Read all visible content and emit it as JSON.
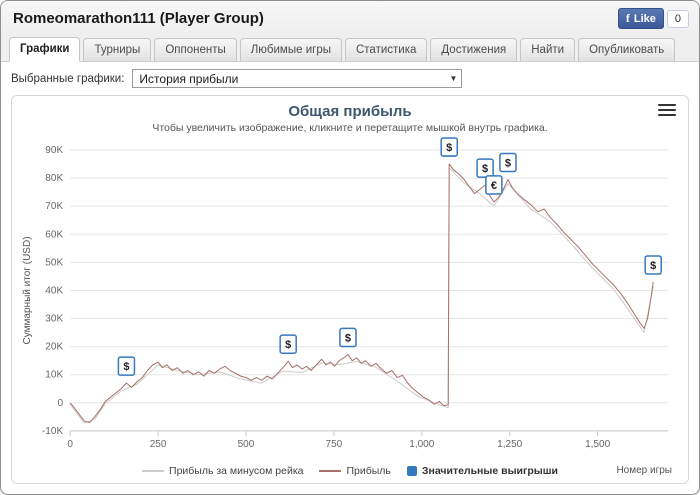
{
  "header": {
    "title": "Romeomarathon111 (Player Group)",
    "fb_like_label": "Like",
    "fb_like_count": "0"
  },
  "tabs": [
    {
      "label": "Графики",
      "active": true
    },
    {
      "label": "Турниры",
      "active": false
    },
    {
      "label": "Оппоненты",
      "active": false
    },
    {
      "label": "Любимые игры",
      "active": false
    },
    {
      "label": "Статистика",
      "active": false
    },
    {
      "label": "Достижения",
      "active": false
    },
    {
      "label": "Найти",
      "active": false
    },
    {
      "label": "Опубликовать",
      "active": false
    }
  ],
  "toolbar": {
    "label": "Выбранные графики:",
    "selected": "История прибыли"
  },
  "chart_data": {
    "type": "line",
    "title": "Общая прибыль",
    "subtitle": "Чтобы увеличить изображение, кликните и перетащите мышкой внутрь графика.",
    "xlabel": "Номер игры",
    "ylabel": "Суммарный итог (USD)",
    "xlim": [
      0,
      1700
    ],
    "ylim": [
      -10000,
      90000
    ],
    "grid": true,
    "legend_position": "bottom",
    "y_ticks": [
      {
        "v": -10000,
        "label": "-10K"
      },
      {
        "v": 0,
        "label": "0"
      },
      {
        "v": 10000,
        "label": "10K"
      },
      {
        "v": 20000,
        "label": "20K"
      },
      {
        "v": 30000,
        "label": "30K"
      },
      {
        "v": 40000,
        "label": "40K"
      },
      {
        "v": 50000,
        "label": "50K"
      },
      {
        "v": 60000,
        "label": "60K"
      },
      {
        "v": 70000,
        "label": "70K"
      },
      {
        "v": 80000,
        "label": "80K"
      },
      {
        "v": 90000,
        "label": "90K"
      }
    ],
    "x_ticks": [
      {
        "v": 0,
        "label": "0"
      },
      {
        "v": 250,
        "label": "250"
      },
      {
        "v": 500,
        "label": "500"
      },
      {
        "v": 750,
        "label": "750"
      },
      {
        "v": 1000,
        "label": "1,000"
      },
      {
        "v": 1250,
        "label": "1,250"
      },
      {
        "v": 1500,
        "label": "1,500"
      }
    ],
    "series": [
      {
        "name": "Прибыль за минусом рейка",
        "color": "#cccccc",
        "points": [
          [
            0,
            -500
          ],
          [
            40,
            -7200
          ],
          [
            70,
            -5800
          ],
          [
            100,
            -300
          ],
          [
            145,
            4200
          ],
          [
            190,
            6600
          ],
          [
            250,
            13500
          ],
          [
            305,
            11500
          ],
          [
            365,
            10000
          ],
          [
            425,
            11000
          ],
          [
            485,
            8500
          ],
          [
            545,
            7000
          ],
          [
            605,
            11300
          ],
          [
            660,
            10800
          ],
          [
            715,
            14200
          ],
          [
            765,
            13600
          ],
          [
            815,
            14700
          ],
          [
            870,
            12600
          ],
          [
            930,
            7700
          ],
          [
            990,
            2200
          ],
          [
            1050,
            -700
          ],
          [
            1075,
            -1800
          ],
          [
            1078,
            83800
          ],
          [
            1120,
            78200
          ],
          [
            1165,
            74500
          ],
          [
            1205,
            70000
          ],
          [
            1245,
            78000
          ],
          [
            1310,
            69000
          ],
          [
            1365,
            64500
          ],
          [
            1425,
            56500
          ],
          [
            1485,
            48000
          ],
          [
            1545,
            40500
          ],
          [
            1605,
            30000
          ],
          [
            1632,
            25000
          ],
          [
            1658,
            41500
          ]
        ]
      },
      {
        "name": "Прибыль",
        "color": "#aa6f68",
        "points": [
          [
            0,
            0
          ],
          [
            10,
            -1500
          ],
          [
            25,
            -4000
          ],
          [
            40,
            -6500
          ],
          [
            55,
            -7000
          ],
          [
            70,
            -5000
          ],
          [
            85,
            -2500
          ],
          [
            100,
            500
          ],
          [
            115,
            2000
          ],
          [
            130,
            3500
          ],
          [
            145,
            5000
          ],
          [
            160,
            7000
          ],
          [
            175,
            5500
          ],
          [
            190,
            7500
          ],
          [
            205,
            9000
          ],
          [
            220,
            11500
          ],
          [
            235,
            13500
          ],
          [
            250,
            14500
          ],
          [
            262,
            12500
          ],
          [
            275,
            13500
          ],
          [
            290,
            11500
          ],
          [
            305,
            12500
          ],
          [
            320,
            10500
          ],
          [
            335,
            11500
          ],
          [
            350,
            10000
          ],
          [
            365,
            11000
          ],
          [
            380,
            9500
          ],
          [
            395,
            11500
          ],
          [
            410,
            10500
          ],
          [
            425,
            12000
          ],
          [
            440,
            13000
          ],
          [
            455,
            11500
          ],
          [
            470,
            10500
          ],
          [
            485,
            9500
          ],
          [
            500,
            9000
          ],
          [
            515,
            8000
          ],
          [
            530,
            9000
          ],
          [
            545,
            8000
          ],
          [
            560,
            9500
          ],
          [
            575,
            8500
          ],
          [
            590,
            10500
          ],
          [
            605,
            12500
          ],
          [
            620,
            14800
          ],
          [
            632,
            12500
          ],
          [
            645,
            13500
          ],
          [
            660,
            12000
          ],
          [
            672,
            13000
          ],
          [
            685,
            11500
          ],
          [
            700,
            13500
          ],
          [
            715,
            15500
          ],
          [
            728,
            13500
          ],
          [
            740,
            14500
          ],
          [
            752,
            13000
          ],
          [
            765,
            15000
          ],
          [
            778,
            16000
          ],
          [
            790,
            17200
          ],
          [
            802,
            15000
          ],
          [
            815,
            16000
          ],
          [
            828,
            14000
          ],
          [
            840,
            15000
          ],
          [
            855,
            13000
          ],
          [
            870,
            14000
          ],
          [
            885,
            12000
          ],
          [
            900,
            10500
          ],
          [
            915,
            11500
          ],
          [
            930,
            9000
          ],
          [
            945,
            9800
          ],
          [
            960,
            7000
          ],
          [
            975,
            5000
          ],
          [
            990,
            3500
          ],
          [
            1005,
            2000
          ],
          [
            1020,
            1000
          ],
          [
            1035,
            -500
          ],
          [
            1050,
            500
          ],
          [
            1062,
            -1000
          ],
          [
            1075,
            -800
          ],
          [
            1078,
            85000
          ],
          [
            1090,
            83000
          ],
          [
            1105,
            81500
          ],
          [
            1120,
            79500
          ],
          [
            1135,
            77000
          ],
          [
            1150,
            74500
          ],
          [
            1165,
            76000
          ],
          [
            1180,
            77500
          ],
          [
            1192,
            74000
          ],
          [
            1205,
            71500
          ],
          [
            1218,
            73000
          ],
          [
            1232,
            76000
          ],
          [
            1245,
            79500
          ],
          [
            1258,
            76500
          ],
          [
            1272,
            74500
          ],
          [
            1290,
            72500
          ],
          [
            1310,
            70500
          ],
          [
            1330,
            68000
          ],
          [
            1348,
            69000
          ],
          [
            1365,
            66000
          ],
          [
            1385,
            63500
          ],
          [
            1405,
            60500
          ],
          [
            1425,
            58000
          ],
          [
            1445,
            55500
          ],
          [
            1465,
            52500
          ],
          [
            1485,
            49500
          ],
          [
            1505,
            47000
          ],
          [
            1525,
            44500
          ],
          [
            1545,
            42000
          ],
          [
            1565,
            39000
          ],
          [
            1585,
            35500
          ],
          [
            1605,
            31500
          ],
          [
            1620,
            28500
          ],
          [
            1632,
            26500
          ],
          [
            1642,
            30000
          ],
          [
            1650,
            36000
          ],
          [
            1658,
            43000
          ]
        ]
      }
    ],
    "markers": {
      "name": "Значительные выигрыши",
      "color": "#3779bd",
      "items": [
        {
          "x": 160,
          "y": 7000,
          "symbol": "$"
        },
        {
          "x": 620,
          "y": 14800,
          "symbol": "$"
        },
        {
          "x": 790,
          "y": 17200,
          "symbol": "$"
        },
        {
          "x": 1078,
          "y": 85000,
          "symbol": "$"
        },
        {
          "x": 1180,
          "y": 77500,
          "symbol": "$"
        },
        {
          "x": 1205,
          "y": 71500,
          "symbol": "€"
        },
        {
          "x": 1245,
          "y": 79500,
          "symbol": "$"
        },
        {
          "x": 1658,
          "y": 43000,
          "symbol": "$"
        }
      ]
    }
  }
}
